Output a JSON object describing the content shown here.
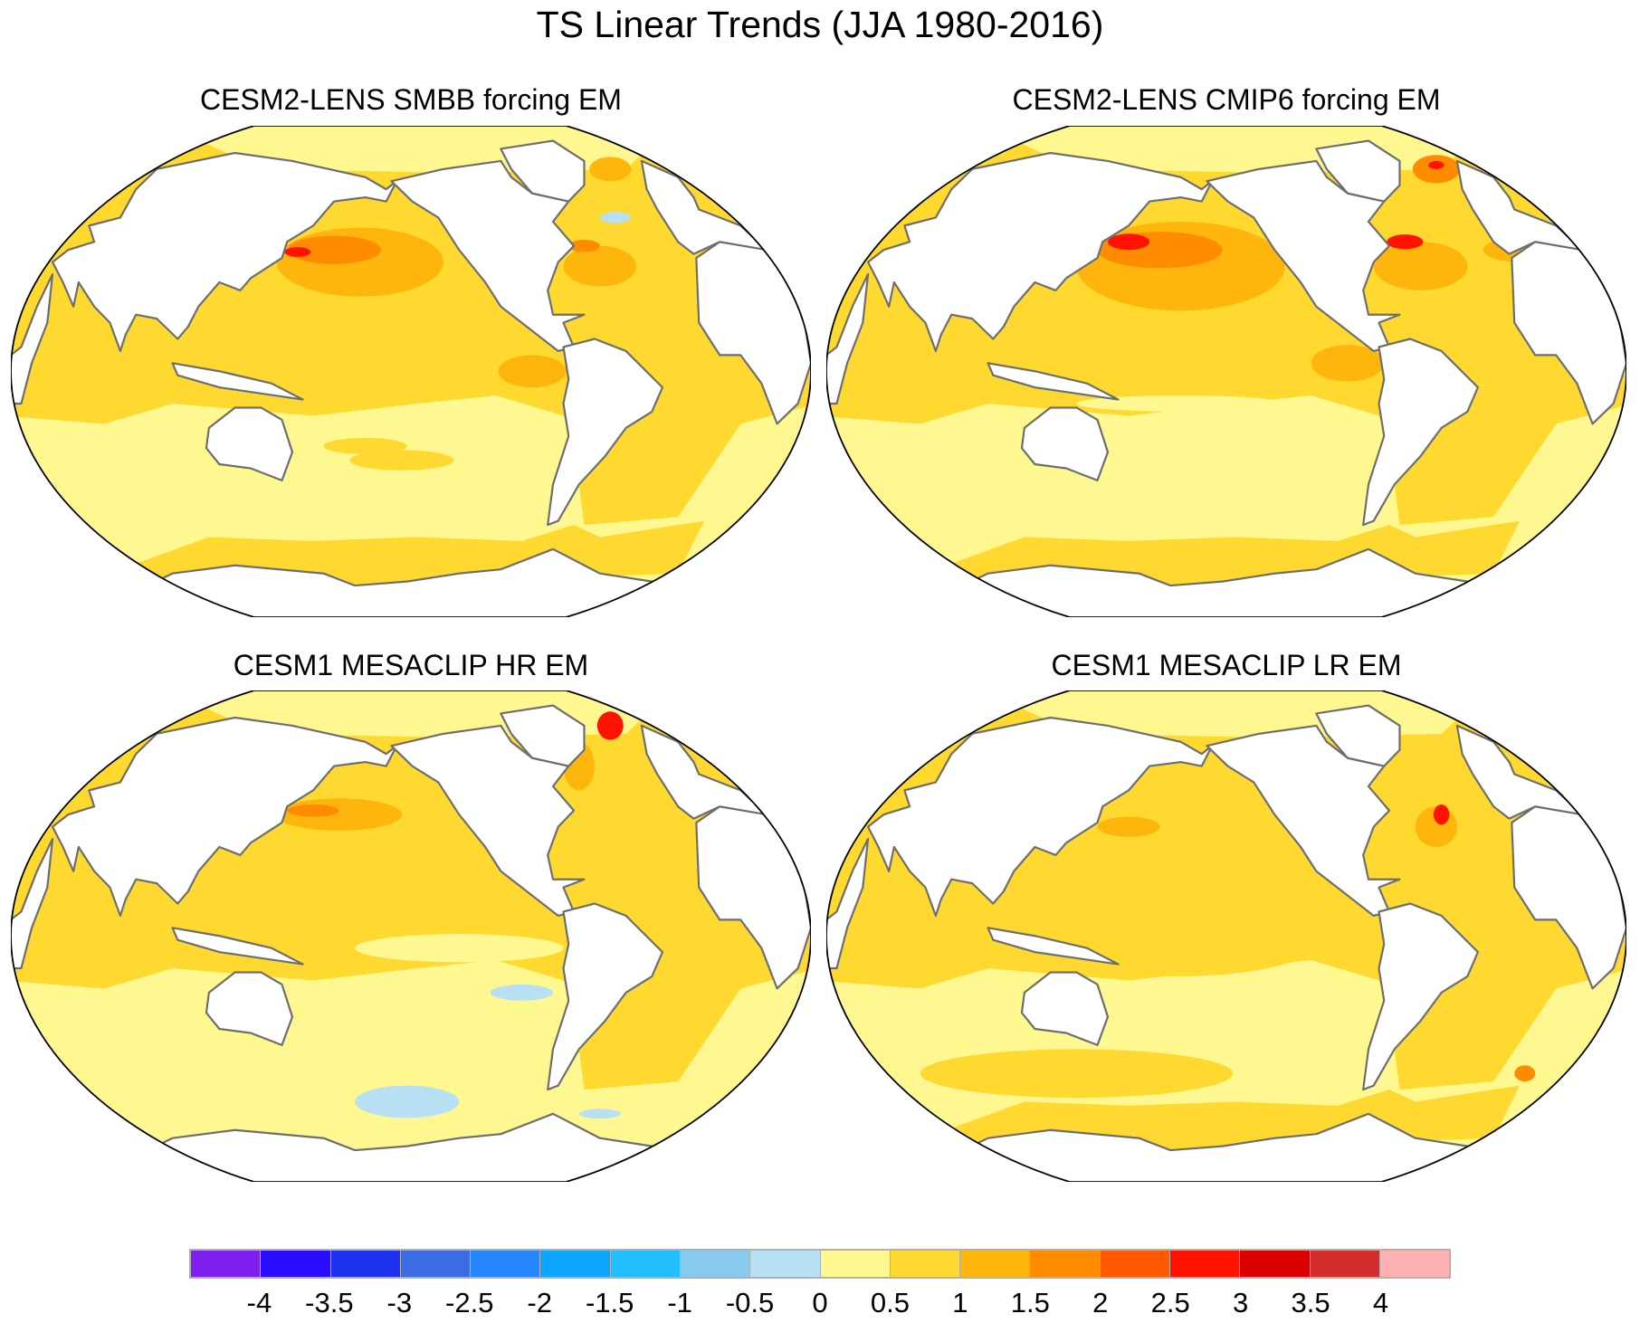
{
  "chart_data": {
    "type": "heatmap",
    "title": "TS Linear Trends (JJA 1980-2016)",
    "projection": "global map, Pacific-centered",
    "panels": [
      {
        "title": "CESM2-LENS SMBB forcing EM"
      },
      {
        "title": "CESM2-LENS CMIP6 forcing EM"
      },
      {
        "title": "CESM1 MESACLIP HR EM"
      },
      {
        "title": "CESM1 MESACLIP LR EM"
      }
    ],
    "colorbar": {
      "orientation": "horizontal",
      "placement": "bottom",
      "levels": [
        "-4",
        "-3.5",
        "-3",
        "-2.5",
        "-2",
        "-1.5",
        "-1",
        "-0.5",
        "0",
        "0.5",
        "1",
        "1.5",
        "2",
        "2.5",
        "3",
        "3.5",
        "4"
      ],
      "colors": [
        "#7f1fef",
        "#2a0cff",
        "#1e32ef",
        "#3c6ce4",
        "#2686ff",
        "#0da6ff",
        "#22bfff",
        "#88cbee",
        "#b8e0f4",
        "#fff891",
        "#ffd92f",
        "#ffb60c",
        "#ff8c00",
        "#ff5a00",
        "#ff1200",
        "#dd0000",
        "#d42b2b",
        "#ffb0b0"
      ]
    },
    "land_color": "#ffffff",
    "coastline_color": "#6e6e6e"
  }
}
